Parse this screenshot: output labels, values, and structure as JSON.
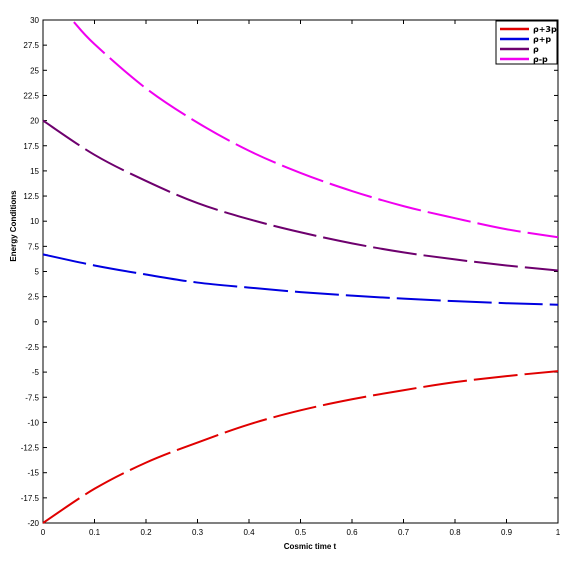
{
  "chart_data": {
    "type": "line",
    "xlabel": "Cosmic time t",
    "ylabel": "Energy Conditions",
    "xlim": [
      0,
      1
    ],
    "ylim": [
      -20,
      30
    ],
    "x_ticks": [
      "0",
      "0.1",
      "0.2",
      "0.3",
      "0.4",
      "0.5",
      "0.6",
      "0.7",
      "0.8",
      "0.9",
      "1"
    ],
    "y_ticks": [
      "-20",
      "-17.5",
      "-15",
      "-12.5",
      "-10",
      "-7.5",
      "-5",
      "-2.5",
      "0",
      "2.5",
      "5",
      "7.5",
      "10",
      "12.5",
      "15",
      "17.5",
      "20",
      "22.5",
      "25",
      "27.5",
      "30"
    ],
    "grid": false,
    "legend_position": "top-right",
    "line_style": "dashed",
    "x": [
      0,
      0.1,
      0.2,
      0.3,
      0.4,
      0.5,
      0.6,
      0.7,
      0.8,
      0.9,
      1.0
    ],
    "series": [
      {
        "name": "ρ+3p",
        "color": "#e00000",
        "values": [
          -20,
          -16.6,
          -14.0,
          -12.0,
          -10.2,
          -8.8,
          -7.7,
          -6.8,
          -6.0,
          -5.4,
          -4.9
        ]
      },
      {
        "name": "ρ+p",
        "color": "#0000e0",
        "values": [
          6.7,
          5.6,
          4.7,
          3.9,
          3.4,
          2.95,
          2.6,
          2.3,
          2.05,
          1.85,
          1.7
        ]
      },
      {
        "name": "ρ",
        "color": "#6e006e",
        "values": [
          20,
          16.6,
          14.0,
          11.8,
          10.2,
          8.9,
          7.8,
          6.9,
          6.2,
          5.6,
          5.1
        ]
      },
      {
        "name": "ρ-p",
        "color": "#f000f0",
        "x": [
          0.06,
          0.1,
          0.2,
          0.3,
          0.4,
          0.5,
          0.6,
          0.7,
          0.8,
          0.9,
          1.0
        ],
        "values": [
          29.8,
          27.6,
          23.2,
          19.8,
          17.0,
          14.8,
          13.0,
          11.5,
          10.3,
          9.2,
          8.4
        ]
      }
    ]
  }
}
